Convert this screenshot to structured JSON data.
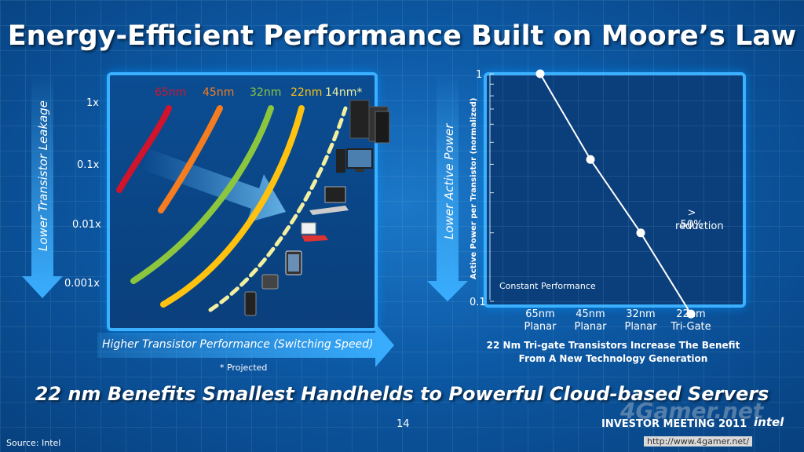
{
  "title": "Energy-Efficient Performance Built on Moore’s Law",
  "left_chart": {
    "y_label": "Lower Transistor Leakage",
    "x_label": "Higher Transistor Performance (Switching Speed)",
    "y_ticks": [
      "1x",
      "0.1x",
      "0.01x",
      "0.001x"
    ],
    "nodes": [
      {
        "label": "65nm",
        "color": "#d0142b"
      },
      {
        "label": "45nm",
        "color": "#f57c1f"
      },
      {
        "label": "32nm",
        "color": "#8cc63f"
      },
      {
        "label": "22nm",
        "color": "#ffc20e"
      },
      {
        "label": "14nm*",
        "color": "#f2f0a0"
      }
    ],
    "device_icons": [
      "server-icon",
      "desktop-icon",
      "laptop-icon",
      "netbook-icon",
      "tablet-icon",
      "handheld-icon",
      "phone-icon"
    ],
    "footnote": "* Projected"
  },
  "right_chart": {
    "y_label_outer": "Lower Active Power",
    "y_label_inner": "Active Power per Transistor (normalized)",
    "note": "Constant Performance",
    "annotation_line1": "> 50%",
    "annotation_line2": "reduction",
    "caption_line1": "22 Nm Tri-gate Transistors Increase The Benefit",
    "caption_line2": "From A New Technology Generation"
  },
  "chart_data": {
    "type": "line",
    "categories": [
      "65nm Planar",
      "45nm Planar",
      "32nm Planar",
      "22nm Tri-Gate"
    ],
    "category_lines": [
      [
        "65nm",
        "Planar"
      ],
      [
        "45nm",
        "Planar"
      ],
      [
        "32nm",
        "Planar"
      ],
      [
        "22nm",
        "Tri-Gate"
      ]
    ],
    "values": [
      1,
      0.42,
      0.2,
      0.088
    ],
    "y_ticks": [
      "1",
      "0.1"
    ],
    "ylim": [
      0.1,
      1
    ],
    "y_scale": "log",
    "ylabel": "Active Power per Transistor (normalized)",
    "color": "#ffffff"
  },
  "bottom_title": "22 nm Benefits Smallest Handhelds to Powerful Cloud-based Servers",
  "page_number": "14",
  "event": "INVESTOR MEETING 2011",
  "brand": "intel",
  "source": "Source: Intel",
  "watermark_logo": "4Gamer.net",
  "watermark_url": "http://www.4gamer.net/"
}
